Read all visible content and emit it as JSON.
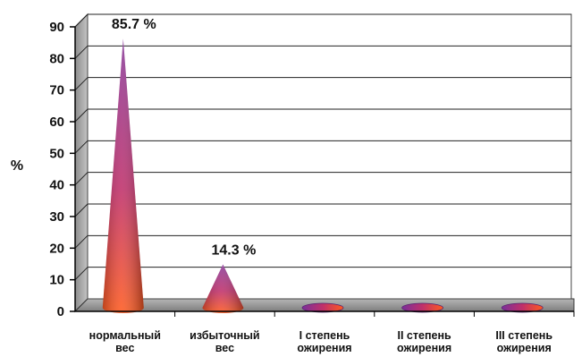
{
  "chart_data": {
    "type": "bar",
    "style": "3d-cone",
    "categories": [
      [
        "нормальный",
        "вес"
      ],
      [
        "избыточный",
        "вес"
      ],
      [
        "I степень",
        "ожирения"
      ],
      [
        "II степень",
        "ожирения"
      ],
      [
        "III степень",
        "ожирения"
      ]
    ],
    "values": [
      85.7,
      14.3,
      0,
      0,
      0
    ],
    "data_labels": [
      "85.7 %",
      "14.3 %",
      "",
      "",
      ""
    ],
    "ylabel": "%",
    "ylim": [
      0,
      90
    ],
    "yticks": [
      0,
      10,
      20,
      30,
      40,
      50,
      60,
      70,
      80,
      90
    ],
    "grid": true,
    "legend": "none",
    "colors": {
      "cone_top": "#8a3a9a",
      "cone_mid": "#c0306a",
      "cone_base": "#ff5a1f",
      "wall_left": "#a9a9a9",
      "floor": "#9a9a9a",
      "gridline": "#000000"
    }
  }
}
